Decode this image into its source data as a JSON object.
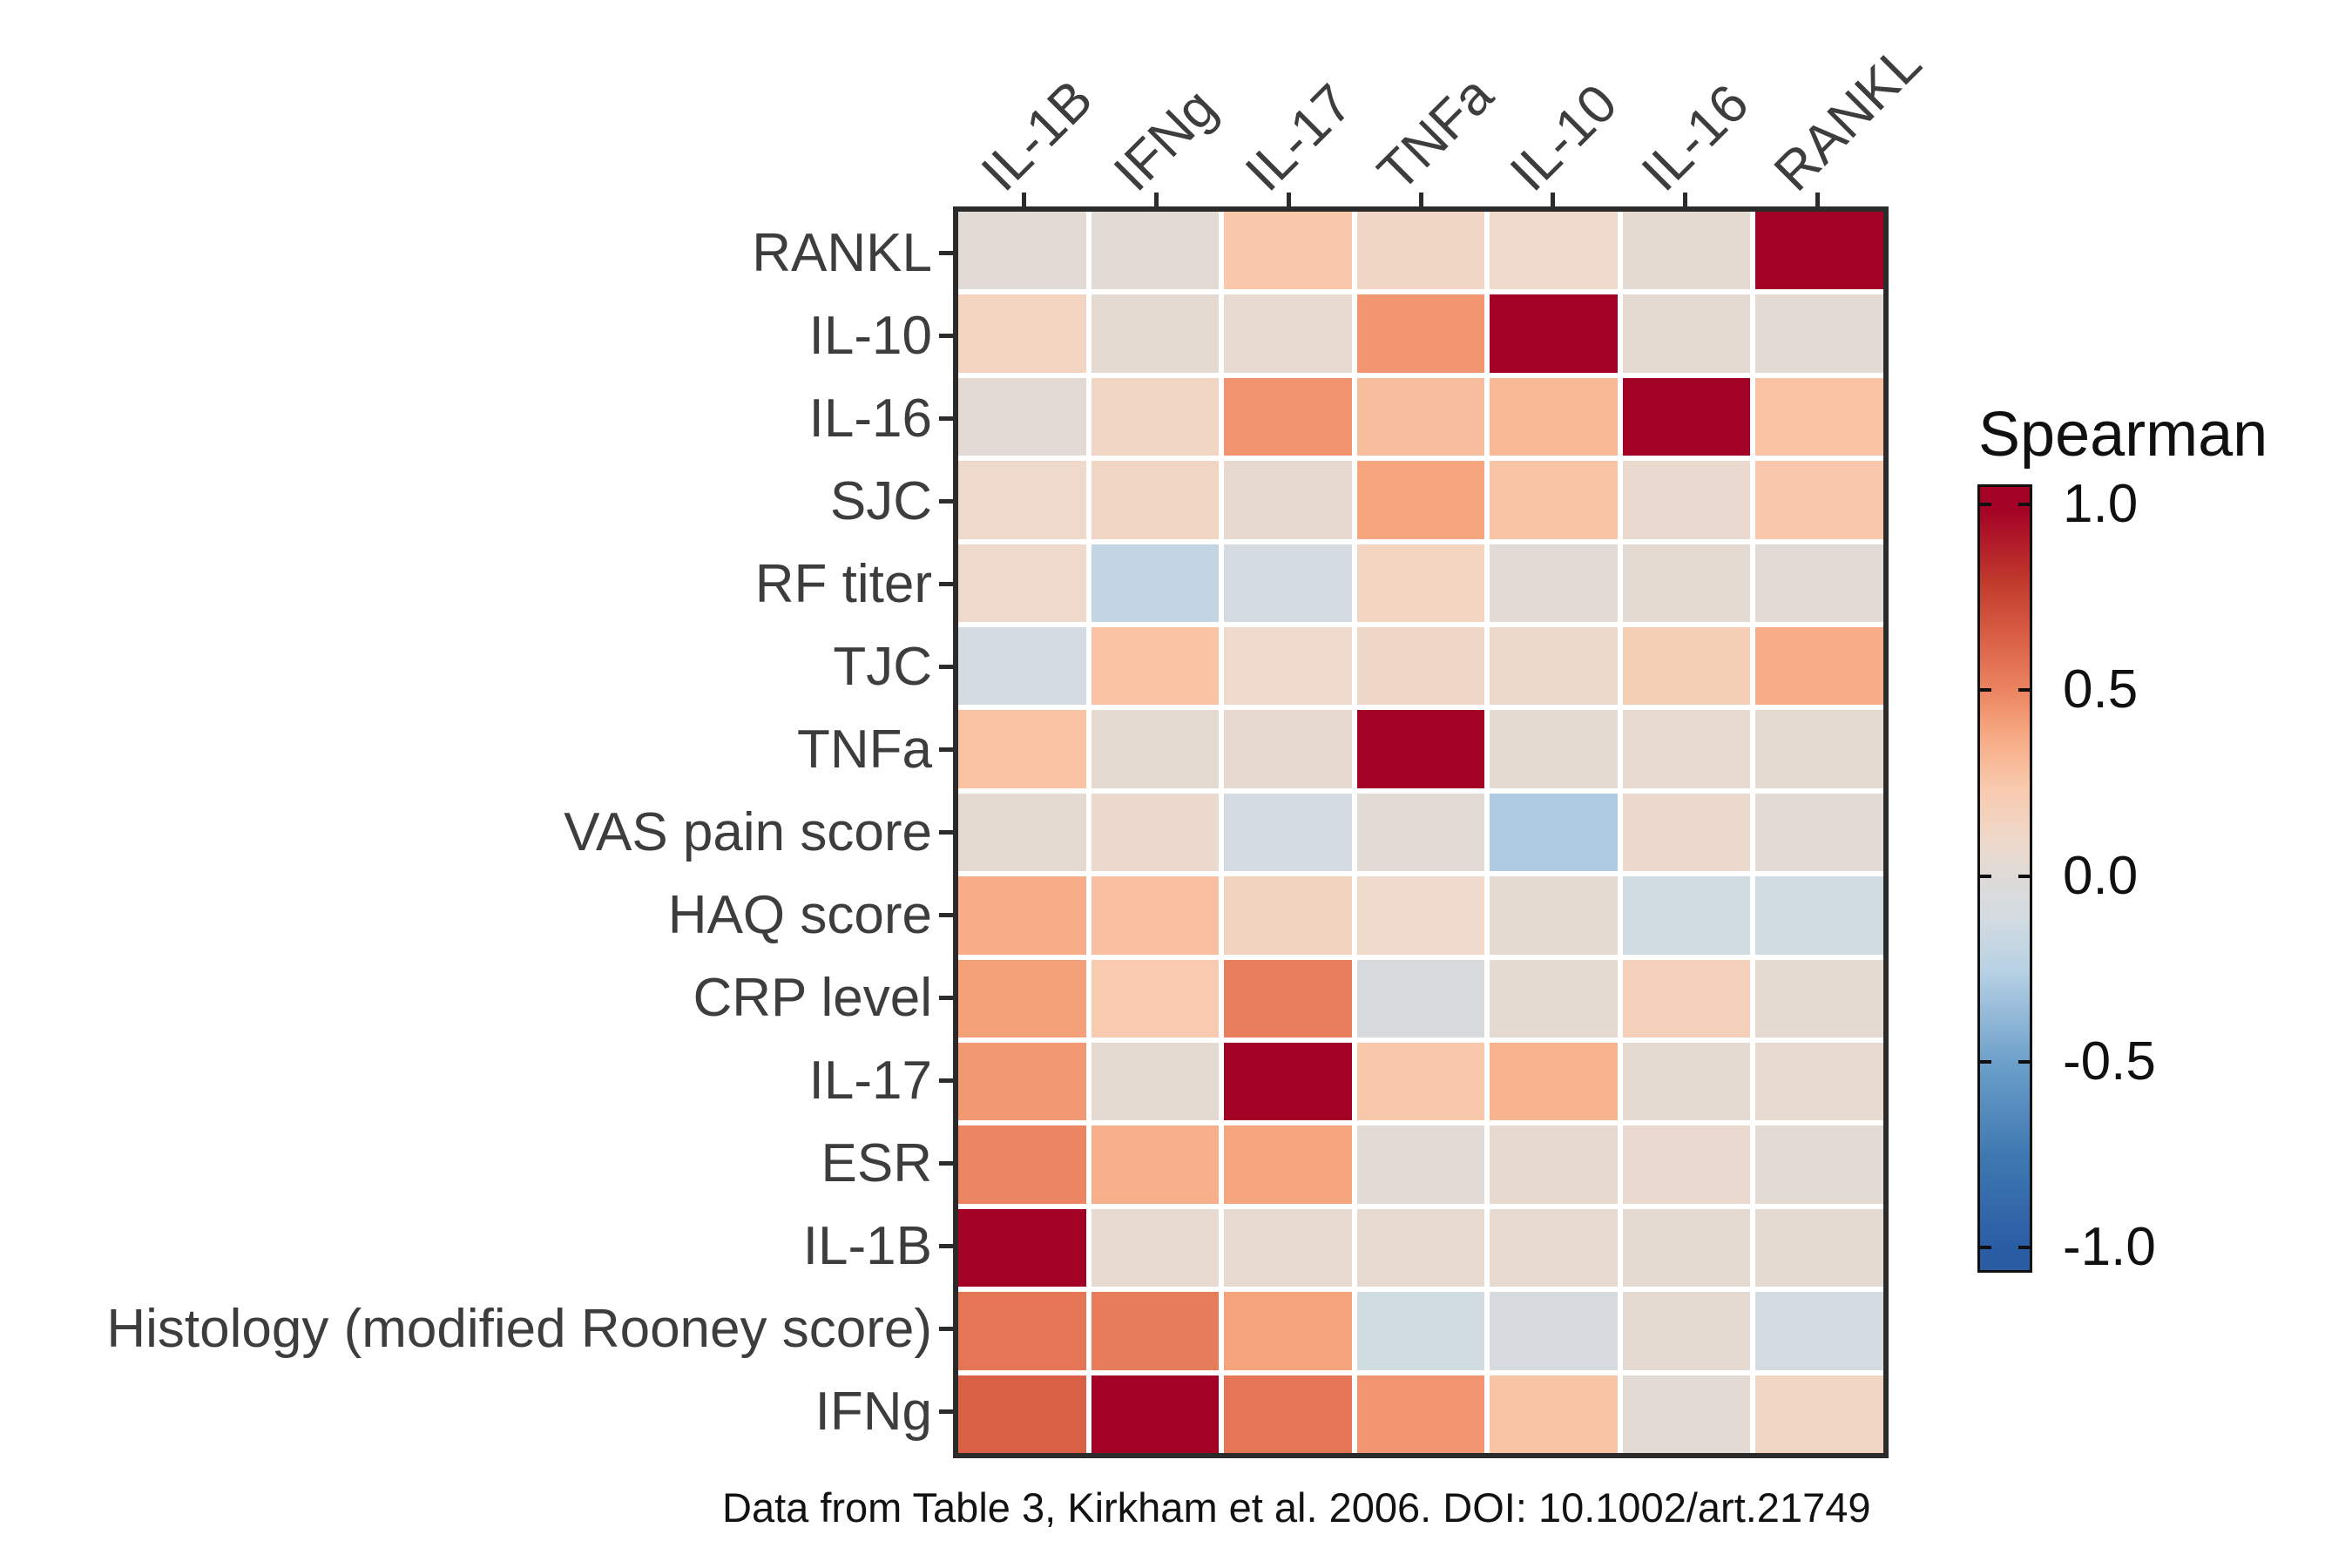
{
  "chart_data": {
    "type": "heatmap",
    "columns": [
      "IL-1B",
      "IFNg",
      "IL-17",
      "TNFa",
      "IL-10",
      "IL-16",
      "RANKL"
    ],
    "rows": [
      "RANKL",
      "IL-10",
      "IL-16",
      "SJC",
      "RF titer",
      "TJC",
      "TNFa",
      "VAS pain score",
      "HAQ score",
      "CRP level",
      "IL-17",
      "ESR",
      "IL-1B",
      "Histology (modified Rooney score)",
      "IFNg"
    ],
    "values": [
      [
        0.02,
        0.03,
        0.26,
        0.13,
        0.1,
        0.04,
        1.0
      ],
      [
        0.15,
        0.04,
        0.05,
        0.45,
        1.0,
        0.04,
        0.03
      ],
      [
        0.03,
        0.14,
        0.46,
        0.3,
        0.32,
        1.0,
        0.28
      ],
      [
        0.1,
        0.14,
        0.06,
        0.4,
        0.27,
        0.07,
        0.26
      ],
      [
        0.1,
        -0.2,
        -0.1,
        0.15,
        0.02,
        0.04,
        0.02
      ],
      [
        -0.1,
        0.28,
        0.1,
        0.12,
        0.09,
        0.2,
        0.37
      ],
      [
        0.28,
        0.04,
        0.06,
        1.0,
        0.04,
        0.05,
        0.04
      ],
      [
        0.04,
        0.08,
        -0.1,
        0.03,
        -0.28,
        0.08,
        0.03
      ],
      [
        0.37,
        0.29,
        0.16,
        0.1,
        0.04,
        -0.12,
        -0.12
      ],
      [
        0.42,
        0.23,
        0.53,
        -0.06,
        0.04,
        0.18,
        0.04
      ],
      [
        0.44,
        0.04,
        1.0,
        0.26,
        0.35,
        0.04,
        0.05
      ],
      [
        0.5,
        0.36,
        0.4,
        0.02,
        0.06,
        0.07,
        0.03
      ],
      [
        1.0,
        0.05,
        0.05,
        0.05,
        0.05,
        0.04,
        0.04
      ],
      [
        0.56,
        0.54,
        0.41,
        -0.12,
        -0.07,
        0.04,
        -0.1
      ],
      [
        0.65,
        1.0,
        0.56,
        0.45,
        0.27,
        0.03,
        0.14
      ]
    ],
    "value_range": [
      -1.0,
      1.0
    ],
    "colorbar": {
      "title": "Spearman",
      "ticks": [
        1.0,
        0.5,
        0.0,
        -0.5,
        -1.0
      ],
      "tick_labels": [
        "1.0",
        "0.5",
        "0.0",
        "-0.5",
        "-1.0"
      ]
    },
    "color_scale": [
      {
        "v": -1.0,
        "c": "#2a5ca4"
      },
      {
        "v": -0.75,
        "c": "#3e78b1"
      },
      {
        "v": -0.5,
        "c": "#6b9fca"
      },
      {
        "v": -0.25,
        "c": "#b7d1e4"
      },
      {
        "v": -0.1,
        "c": "#d4dce2"
      },
      {
        "v": 0.0,
        "c": "#dedad7"
      },
      {
        "v": 0.1,
        "c": "#eed9cb"
      },
      {
        "v": 0.25,
        "c": "#f9c9ac"
      },
      {
        "v": 0.4,
        "c": "#f6a67f"
      },
      {
        "v": 0.5,
        "c": "#ec8662"
      },
      {
        "v": 0.65,
        "c": "#d95f45"
      },
      {
        "v": 0.8,
        "c": "#c03a2c"
      },
      {
        "v": 1.0,
        "c": "#a40126"
      }
    ],
    "colors": {
      "max_red": "#a40126",
      "mid_neutral": "#dedad7",
      "min_blue": "#2a5ca4",
      "frame": "#2b2b2b",
      "label_text": "#3d3d3d"
    },
    "caption": "Data from Table 3, Kirkham et al. 2006. DOI: 10.1002/art.21749"
  }
}
